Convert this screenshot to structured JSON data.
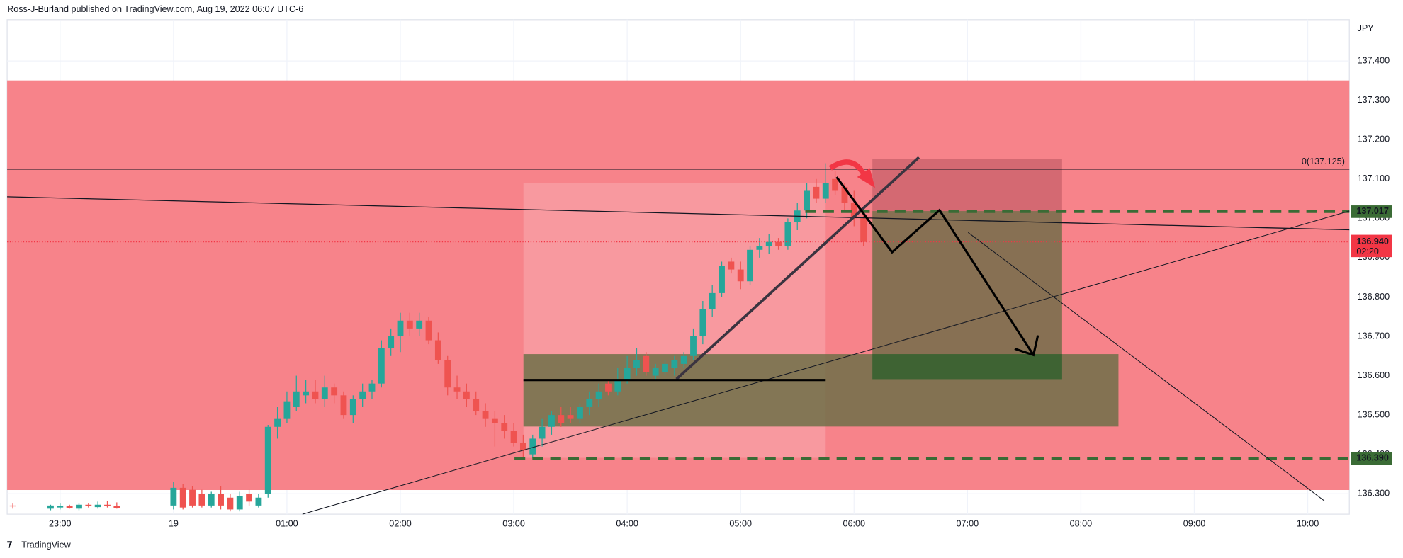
{
  "header": "Ross-J-Burland published on TradingView.com, Aug 19, 2022 06:07 UTC-6",
  "footer": "TradingView",
  "chart_data": {
    "type": "candlestick",
    "currency": "JPY",
    "x": [
      "22:35",
      "22:55",
      "23:00",
      "23:05",
      "23:10",
      "23:15",
      "23:20",
      "23:25",
      "23:30",
      "00:00",
      "00:05",
      "00:10",
      "00:15",
      "00:20",
      "00:25",
      "00:30",
      "00:35",
      "00:40",
      "00:45",
      "00:50",
      "00:55",
      "01:00",
      "01:05",
      "01:10",
      "01:15",
      "01:20",
      "01:25",
      "01:30",
      "01:35",
      "01:40",
      "01:45",
      "01:50",
      "01:55",
      "02:00",
      "02:05",
      "02:10",
      "02:15",
      "02:20",
      "02:25",
      "02:30",
      "02:35",
      "02:40",
      "02:45",
      "02:50",
      "02:55",
      "03:00",
      "03:05",
      "03:10",
      "03:15",
      "03:20",
      "03:25",
      "03:30",
      "03:35",
      "03:40",
      "03:45",
      "03:50",
      "03:55",
      "04:00",
      "04:05",
      "04:10",
      "04:15",
      "04:20",
      "04:25",
      "04:30",
      "04:35",
      "04:40",
      "04:45",
      "04:50",
      "04:55",
      "05:00",
      "05:05",
      "05:10",
      "05:15",
      "05:20",
      "05:25",
      "05:30",
      "05:35",
      "05:40",
      "05:45",
      "05:50",
      "05:55",
      "06:00",
      "06:05"
    ],
    "open": [
      136.27,
      136.262,
      136.265,
      136.268,
      136.262,
      136.272,
      136.266,
      136.272,
      136.268,
      136.27,
      136.315,
      136.31,
      136.3,
      136.27,
      136.3,
      136.29,
      136.26,
      136.3,
      136.27,
      136.3,
      136.47,
      136.49,
      136.52,
      136.55,
      136.56,
      136.54,
      136.57,
      136.55,
      136.5,
      136.54,
      136.56,
      136.58,
      136.67,
      136.7,
      136.74,
      136.72,
      136.74,
      136.69,
      136.64,
      136.57,
      136.56,
      136.54,
      136.51,
      136.49,
      136.48,
      136.46,
      136.43,
      136.4,
      136.44,
      136.47,
      136.5,
      136.5,
      136.49,
      136.52,
      136.54,
      136.58,
      136.56,
      136.59,
      136.62,
      136.65,
      136.6,
      136.61,
      136.62,
      136.63,
      136.65,
      136.7,
      136.77,
      136.81,
      136.89,
      136.87,
      136.84,
      136.92,
      136.93,
      136.94,
      136.93,
      136.99,
      137.02,
      137.08,
      137.05,
      137.1,
      137.08,
      137.04,
      137.0
    ],
    "high": [
      136.275,
      136.272,
      136.275,
      136.272,
      136.275,
      136.275,
      136.28,
      136.282,
      136.278,
      136.33,
      136.325,
      136.32,
      136.31,
      136.305,
      136.32,
      136.3,
      136.305,
      136.31,
      136.3,
      136.475,
      136.52,
      136.56,
      136.6,
      136.59,
      136.59,
      136.6,
      136.58,
      136.56,
      136.55,
      136.58,
      136.59,
      136.69,
      136.72,
      136.76,
      136.76,
      136.76,
      136.75,
      136.71,
      136.65,
      136.6,
      136.58,
      136.56,
      136.53,
      136.51,
      136.5,
      136.48,
      136.45,
      136.45,
      136.49,
      136.51,
      136.52,
      136.52,
      136.53,
      136.56,
      136.58,
      136.59,
      136.62,
      136.65,
      136.67,
      136.66,
      136.63,
      136.64,
      136.65,
      136.66,
      136.72,
      136.79,
      136.83,
      136.89,
      136.9,
      136.89,
      136.93,
      136.95,
      136.96,
      136.95,
      137.0,
      137.04,
      137.09,
      137.1,
      137.14,
      137.12,
      137.09,
      137.07,
      137.02
    ],
    "low": [
      136.262,
      136.258,
      136.26,
      136.262,
      136.258,
      136.265,
      136.262,
      136.265,
      136.262,
      136.26,
      136.26,
      136.265,
      136.265,
      136.265,
      136.26,
      136.255,
      136.255,
      136.27,
      136.265,
      136.29,
      136.44,
      136.48,
      136.51,
      136.53,
      136.53,
      136.52,
      136.53,
      136.49,
      136.48,
      136.52,
      136.54,
      136.57,
      136.65,
      136.66,
      136.7,
      136.7,
      136.68,
      136.63,
      136.55,
      136.54,
      136.52,
      136.5,
      136.47,
      136.42,
      136.44,
      136.42,
      136.39,
      136.39,
      136.42,
      136.45,
      136.47,
      136.48,
      136.48,
      136.5,
      136.52,
      136.55,
      136.55,
      136.58,
      136.6,
      136.6,
      136.59,
      136.6,
      136.6,
      136.62,
      136.64,
      136.68,
      136.75,
      136.8,
      136.86,
      136.82,
      136.83,
      136.9,
      136.91,
      136.92,
      136.92,
      136.97,
      137.0,
      137.04,
      137.04,
      137.06,
      137.02,
      136.98,
      136.93
    ],
    "close": [
      136.268,
      136.27,
      136.268,
      136.264,
      136.272,
      136.268,
      136.272,
      136.268,
      136.264,
      136.315,
      136.265,
      136.27,
      136.27,
      136.3,
      136.27,
      136.26,
      136.295,
      136.28,
      136.29,
      136.47,
      136.49,
      136.535,
      136.56,
      136.56,
      136.54,
      136.57,
      136.55,
      136.5,
      136.54,
      136.56,
      136.58,
      136.67,
      136.7,
      136.74,
      136.72,
      136.74,
      136.69,
      136.64,
      136.57,
      136.56,
      136.54,
      136.51,
      136.49,
      136.48,
      136.46,
      136.43,
      136.41,
      136.44,
      136.47,
      136.5,
      136.48,
      136.49,
      136.52,
      136.54,
      136.56,
      136.56,
      136.59,
      136.62,
      136.64,
      136.61,
      136.62,
      136.63,
      136.64,
      136.65,
      136.7,
      136.77,
      136.81,
      136.88,
      136.87,
      136.84,
      136.92,
      136.93,
      136.94,
      136.93,
      136.99,
      137.02,
      137.07,
      137.05,
      137.09,
      137.07,
      137.04,
      137.0,
      136.94
    ],
    "up_color": "#26a69a",
    "down_color": "#ef5350",
    "xlim": [
      "22:32",
      "10:22"
    ],
    "xticks": [
      "23:00",
      {
        "value": "00:00",
        "label": "19"
      },
      "01:00",
      "02:00",
      "03:00",
      "04:00",
      "05:00",
      "06:00",
      "07:00",
      "08:00",
      "09:00",
      "10:00"
    ],
    "ylim": [
      136.248,
      137.505
    ],
    "yticks": [
      {
        "value": 136.3,
        "label": "136.300"
      },
      {
        "value": 136.4,
        "label": "136.400"
      },
      {
        "value": 136.5,
        "label": "136.500"
      },
      {
        "value": 136.6,
        "label": "136.600"
      },
      {
        "value": 136.7,
        "label": "136.700"
      },
      {
        "value": 136.8,
        "label": "136.800"
      },
      {
        "value": 136.9,
        "label": "136.900"
      },
      {
        "value": 137.0,
        "label": "137.000"
      },
      {
        "value": 137.1,
        "label": "137.100"
      },
      {
        "value": 137.2,
        "label": "137.200"
      },
      {
        "value": 137.3,
        "label": "137.300"
      },
      {
        "value": 137.4,
        "label": "137.400"
      }
    ],
    "grid": true,
    "levels": [
      {
        "value": 137.125,
        "label": "0(137.125)"
      }
    ],
    "price_lines": [
      {
        "value": 137.017,
        "label": "137.017",
        "color": "#3a6b35"
      },
      {
        "value": 136.39,
        "label": "136.390",
        "color": "#3a6b35"
      }
    ],
    "last_price": {
      "value": 136.94,
      "label": "136.940",
      "countdown": "02:20",
      "color": "#f23645"
    }
  }
}
